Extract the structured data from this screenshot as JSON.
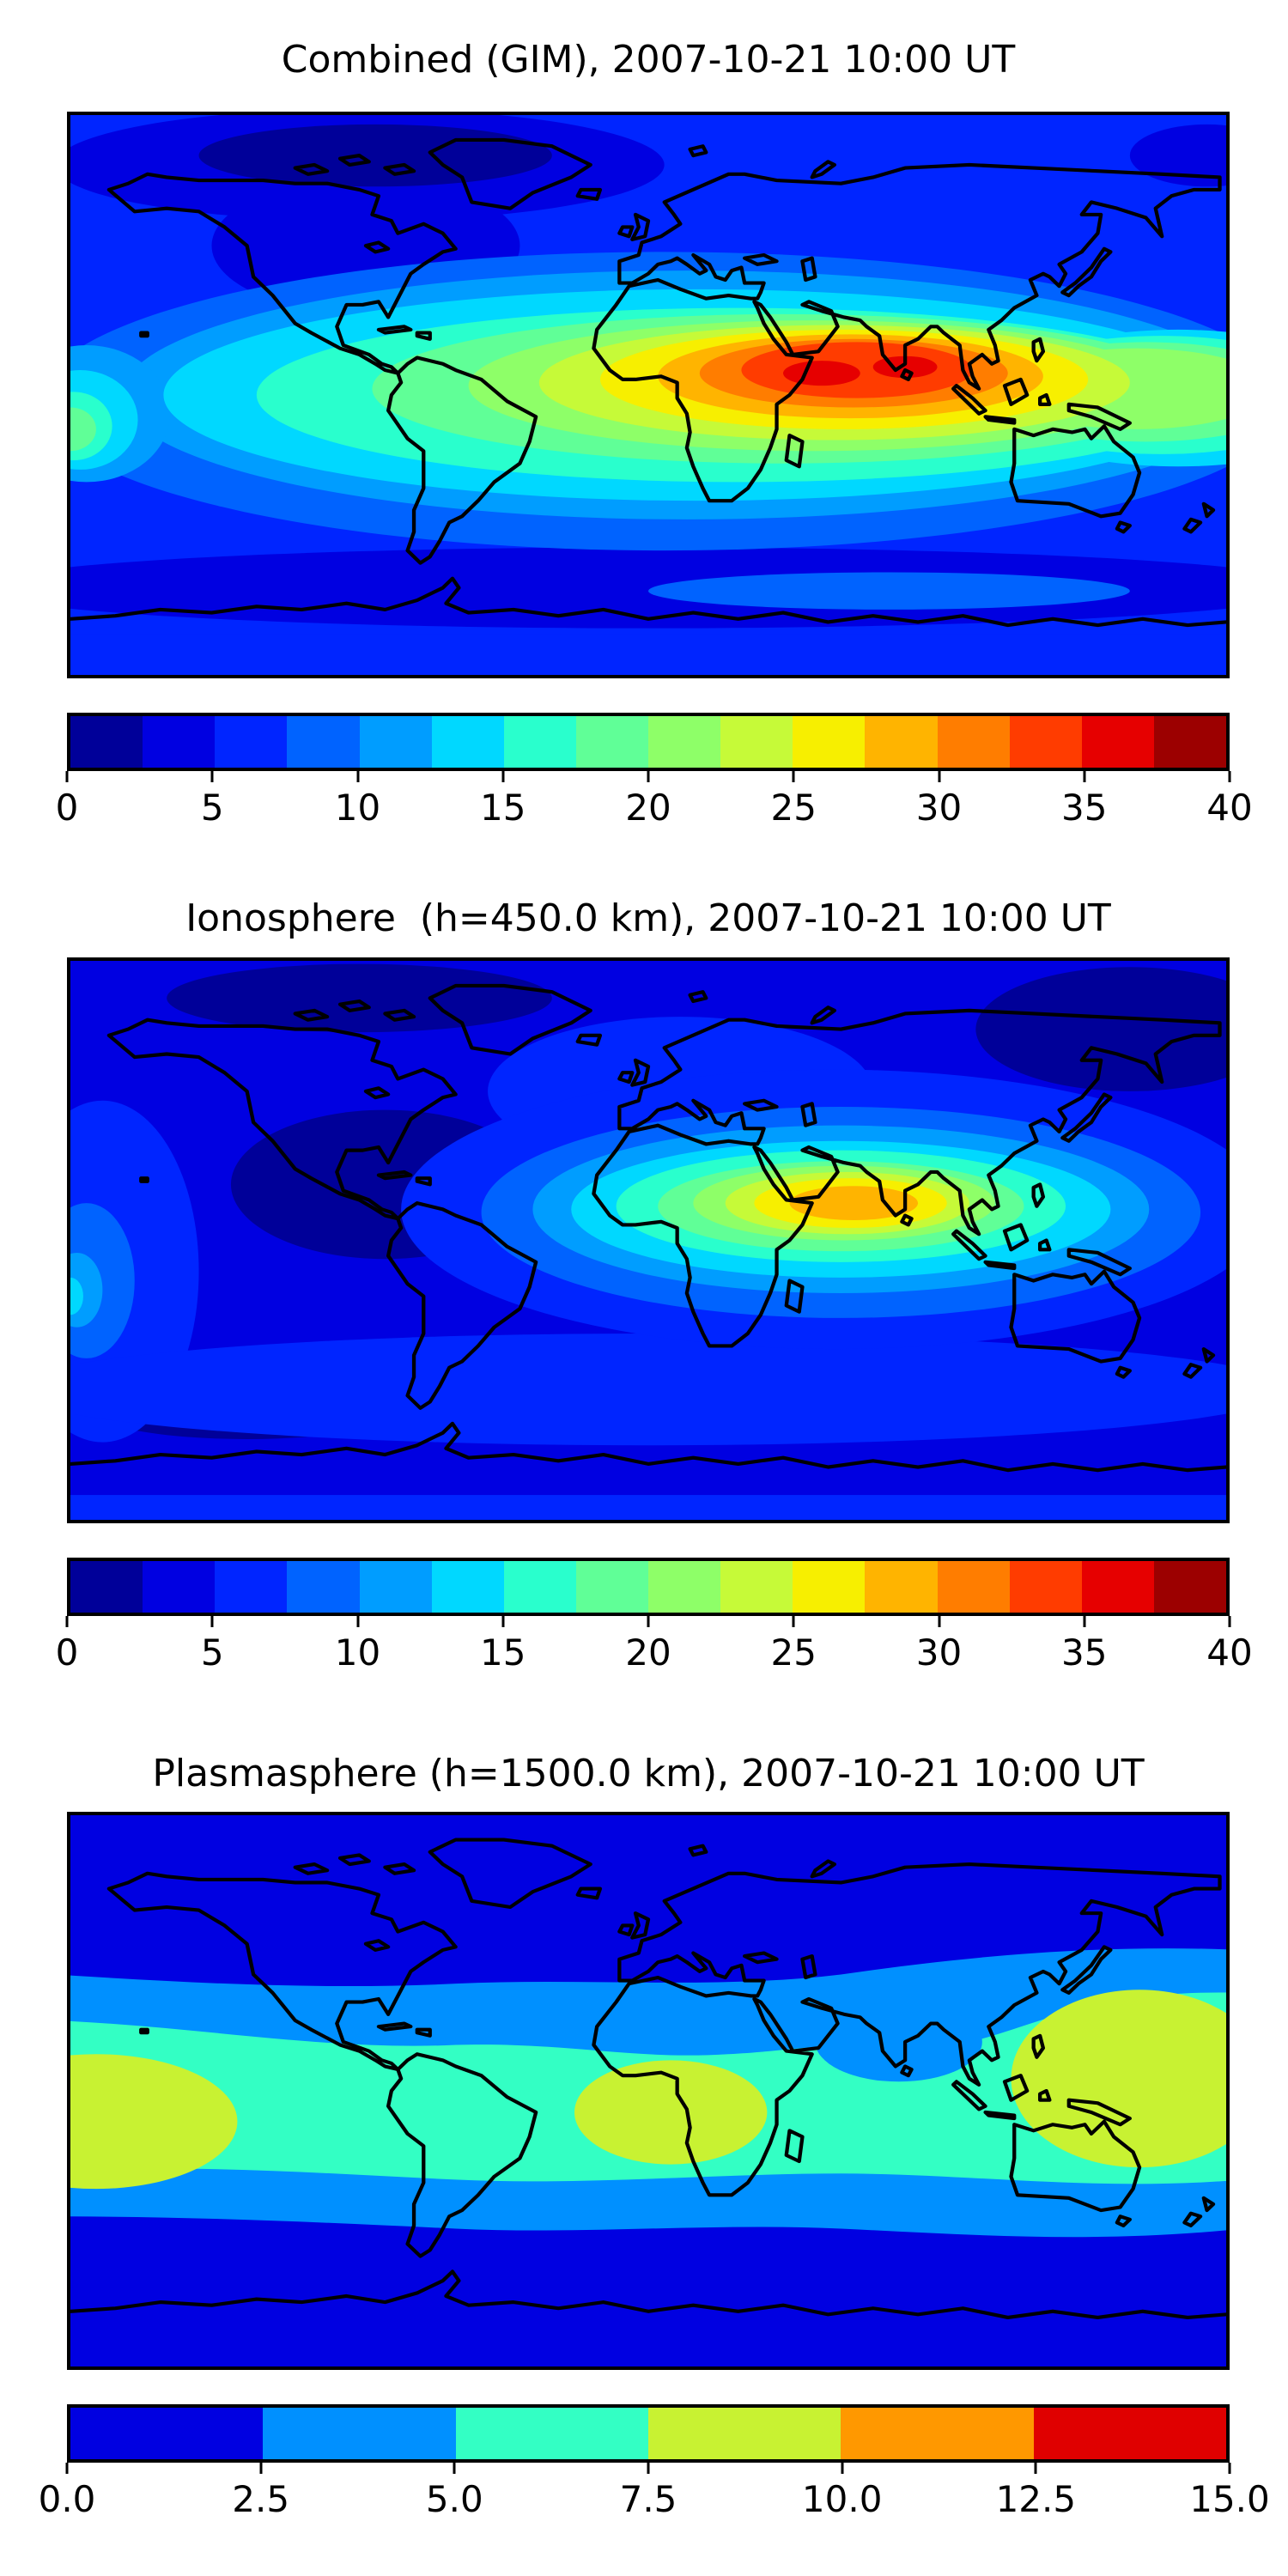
{
  "figure": {
    "background": "#ffffff",
    "coastline_color": "#000000",
    "colormap": "jet"
  },
  "panels": [
    {
      "key": "combined",
      "title": "Combined (GIM), 2007-10-21 10:00 UT",
      "colorbar": {
        "colors": [
          "#000099",
          "#0000e1",
          "#0025ff",
          "#0063ff",
          "#009dff",
          "#00d8ff",
          "#29ffcd",
          "#60ff97",
          "#8eff68",
          "#c6fa38",
          "#f7ef00",
          "#ffb400",
          "#ff7d00",
          "#ff3c00",
          "#e60000",
          "#9c0000"
        ],
        "tick_labels": [
          "0",
          "5",
          "10",
          "15",
          "20",
          "25",
          "30",
          "35",
          "40"
        ]
      }
    },
    {
      "key": "ionosphere",
      "title": "Ionosphere  (h=450.0 km), 2007-10-21 10:00 UT",
      "colorbar": {
        "colors": [
          "#000099",
          "#0000e1",
          "#0025ff",
          "#0063ff",
          "#009dff",
          "#00d8ff",
          "#29ffcd",
          "#60ff97",
          "#8eff68",
          "#c6fa38",
          "#f7ef00",
          "#ffb400",
          "#ff7d00",
          "#ff3c00",
          "#e60000",
          "#9c0000"
        ],
        "tick_labels": [
          "0",
          "5",
          "10",
          "15",
          "20",
          "25",
          "30",
          "35",
          "40"
        ]
      }
    },
    {
      "key": "plasmasphere",
      "title": "Plasmasphere (h=1500.0 km), 2007-10-21 10:00 UT",
      "colorbar": {
        "colors": [
          "#0000e1",
          "#0090ff",
          "#33ffc4",
          "#c8f232",
          "#ff9800",
          "#e00000"
        ],
        "tick_labels": [
          "0.0",
          "2.5",
          "5.0",
          "7.5",
          "10.0",
          "12.5",
          "15.0"
        ]
      }
    }
  ],
  "chart_data": [
    {
      "type": "heatmap",
      "subtype": "filled-contour-world-map",
      "title": "Combined (GIM), 2007-10-21 10:00 UT",
      "colormap": "jet",
      "levels": [
        0,
        2.5,
        5,
        7.5,
        10,
        12.5,
        15,
        17.5,
        20,
        22.5,
        25,
        27.5,
        30,
        32.5,
        35,
        37.5,
        40
      ],
      "value_range": [
        0,
        40
      ],
      "projection": "equirectangular",
      "lon_range": [
        -180,
        180
      ],
      "lat_range": [
        -90,
        90
      ],
      "grid_lons": [
        -180,
        -150,
        -120,
        -90,
        -60,
        -30,
        0,
        30,
        60,
        90,
        120,
        150,
        180
      ],
      "grid_lats": [
        80,
        60,
        40,
        20,
        0,
        -20,
        -40,
        -60,
        -80
      ],
      "values": [
        [
          4,
          3,
          3,
          3,
          4,
          5,
          6,
          6,
          5,
          5,
          4,
          4,
          4
        ],
        [
          5,
          4,
          3,
          2,
          3,
          6,
          8,
          9,
          8,
          7,
          6,
          5,
          5
        ],
        [
          7,
          6,
          5,
          4,
          5,
          8,
          12,
          15,
          14,
          12,
          8,
          7,
          7
        ],
        [
          10,
          8,
          6,
          5,
          6,
          12,
          22,
          30,
          32,
          25,
          15,
          10,
          10
        ],
        [
          17,
          13,
          9,
          7,
          8,
          15,
          25,
          33,
          36,
          28,
          18,
          15,
          17
        ],
        [
          15,
          12,
          10,
          8,
          8,
          12,
          18,
          24,
          26,
          20,
          14,
          12,
          15
        ],
        [
          8,
          7,
          6,
          6,
          5,
          6,
          8,
          10,
          10,
          9,
          8,
          7,
          8
        ],
        [
          5,
          5,
          4,
          4,
          4,
          5,
          6,
          6,
          6,
          6,
          5,
          5,
          5
        ],
        [
          3,
          3,
          3,
          3,
          3,
          4,
          4,
          4,
          4,
          4,
          3,
          3,
          3
        ]
      ],
      "annotations": "Maximum (red, ~37 TEC units) centered over the Arabian Sea / India near lon 60E, lat 8N; secondary light-green enhancement at far west Pacific edge near the equator."
    },
    {
      "type": "heatmap",
      "subtype": "filled-contour-world-map",
      "title": "Ionosphere  (h=450.0 km), 2007-10-21 10:00 UT",
      "colormap": "jet",
      "levels": [
        0,
        2.5,
        5,
        7.5,
        10,
        12.5,
        15,
        17.5,
        20,
        22.5,
        25,
        27.5,
        30,
        32.5,
        35,
        37.5,
        40
      ],
      "value_range": [
        0,
        40
      ],
      "projection": "equirectangular",
      "lon_range": [
        -180,
        180
      ],
      "lat_range": [
        -90,
        90
      ],
      "grid_lons": [
        -180,
        -150,
        -120,
        -90,
        -60,
        -30,
        0,
        30,
        60,
        90,
        120,
        150,
        180
      ],
      "grid_lats": [
        80,
        60,
        40,
        20,
        0,
        -20,
        -40,
        -60,
        -80
      ],
      "values": [
        [
          3,
          2,
          2,
          2,
          3,
          4,
          5,
          5,
          4,
          4,
          3,
          3,
          3
        ],
        [
          3,
          3,
          2,
          2,
          2,
          4,
          6,
          7,
          6,
          5,
          4,
          3,
          3
        ],
        [
          4,
          4,
          3,
          3,
          3,
          6,
          9,
          12,
          11,
          9,
          6,
          4,
          4
        ],
        [
          6,
          5,
          4,
          3,
          4,
          9,
          18,
          25,
          28,
          20,
          11,
          6,
          6
        ],
        [
          10,
          8,
          5,
          4,
          5,
          11,
          20,
          27,
          29,
          22,
          13,
          9,
          10
        ],
        [
          9,
          7,
          6,
          5,
          5,
          8,
          13,
          17,
          18,
          15,
          9,
          7,
          9
        ],
        [
          5,
          4,
          4,
          3,
          3,
          4,
          6,
          7,
          7,
          6,
          5,
          4,
          5
        ],
        [
          3,
          3,
          3,
          2,
          2,
          3,
          4,
          4,
          4,
          4,
          3,
          3,
          3
        ],
        [
          2,
          2,
          2,
          2,
          2,
          3,
          3,
          3,
          3,
          3,
          2,
          2,
          2
        ]
      ],
      "annotations": "Weaker version of combined map; orange core (~28-30 TEC units) over Arabian Sea and southern India; dark minima (<2.5) over Caribbean/west Atlantic and northeast Asia."
    },
    {
      "type": "heatmap",
      "subtype": "filled-contour-world-map",
      "title": "Plasmasphere (h=1500.0 km), 2007-10-21 10:00 UT",
      "colormap": "jet",
      "levels": [
        0,
        2.5,
        5,
        7.5,
        10,
        12.5,
        15
      ],
      "value_range": [
        0,
        15
      ],
      "projection": "equirectangular",
      "lon_range": [
        -180,
        180
      ],
      "lat_range": [
        -90,
        90
      ],
      "grid_lons": [
        -180,
        -150,
        -120,
        -90,
        -60,
        -30,
        0,
        30,
        60,
        90,
        120,
        150,
        180
      ],
      "grid_lats": [
        80,
        60,
        40,
        20,
        0,
        -20,
        -40,
        -60,
        -80
      ],
      "values": [
        [
          1,
          1,
          1,
          1,
          1,
          1,
          1,
          1,
          1,
          1,
          1,
          1,
          1
        ],
        [
          2,
          2,
          2,
          1,
          1,
          1,
          2,
          2,
          2,
          2,
          3,
          3,
          2
        ],
        [
          4,
          3,
          3,
          3,
          3,
          3,
          3,
          3,
          3,
          4,
          6,
          6,
          5
        ],
        [
          8,
          6,
          5,
          5,
          5,
          6,
          6,
          5,
          4,
          6,
          8,
          9,
          8
        ],
        [
          9,
          7,
          6,
          6,
          7,
          8,
          8,
          6,
          5,
          7,
          8,
          9,
          9
        ],
        [
          8,
          6,
          6,
          6,
          6,
          7,
          6,
          6,
          6,
          7,
          8,
          8,
          8
        ],
        [
          4,
          4,
          4,
          3,
          3,
          3,
          3,
          4,
          4,
          4,
          4,
          4,
          4
        ],
        [
          2,
          2,
          2,
          2,
          2,
          2,
          2,
          2,
          2,
          2,
          2,
          2,
          2
        ],
        [
          1,
          1,
          1,
          1,
          1,
          1,
          1,
          1,
          1,
          1,
          1,
          1,
          1
        ]
      ],
      "annotations": "Broad equatorial band 5-7.5; three 7.5-10 (yellow-green) patches: far-west Pacific, equatorial Africa/Atlantic, and west Pacific from Japan to north Australia; blue notch (<5) over India."
    }
  ]
}
